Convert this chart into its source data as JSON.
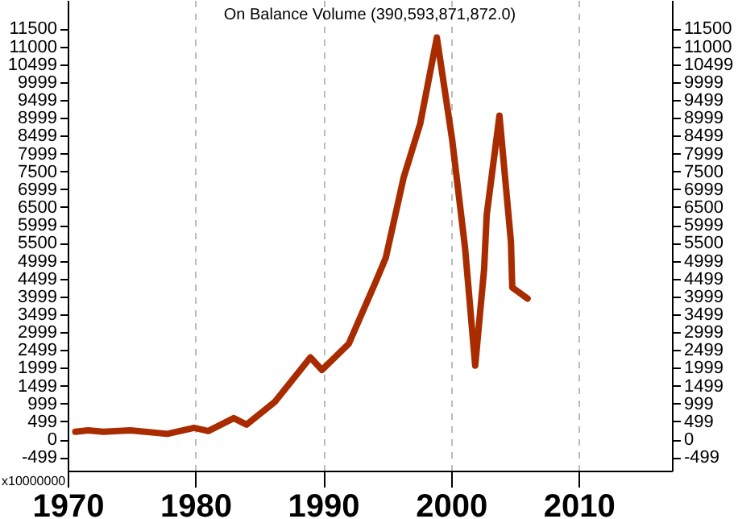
{
  "chart_data": {
    "type": "line",
    "title": "On Balance Volume (390,593,871,872.0)",
    "annotations": [
      "x10000000"
    ],
    "x": [
      1970.6,
      1971.6,
      1972.8,
      1974.9,
      1977.8,
      1979.9,
      1981,
      1983,
      1984,
      1986.2,
      1989,
      1989.9,
      1992,
      1994.1,
      1994.9,
      1996.3,
      1997.6,
      1998.9,
      2000.1,
      2001.1,
      2001.9,
      2002.6,
      2002.8,
      2003.8,
      2004.7,
      2004.8,
      2006
    ],
    "series": [
      {
        "color": "#a82c00",
        "values": [
          210,
          250,
          210,
          250,
          150,
          320,
          230,
          590,
          410,
          1040,
          2290,
          1940,
          2670,
          4400,
          5080,
          7330,
          8840,
          11250,
          8380,
          5380,
          2060,
          4770,
          6280,
          9060,
          5520,
          4250,
          3940
        ]
      }
    ],
    "xlim": [
      1970,
      2017.3
    ],
    "xticks": [
      1970,
      1980,
      1990,
      2000,
      2010
    ],
    "ylim": [
      -880,
      12300
    ],
    "yticks": [
      -499,
      0,
      499,
      999,
      1499,
      1999,
      2499,
      2999,
      3499,
      3999,
      4499,
      4999,
      5500,
      5999,
      6500,
      6999,
      7500,
      7999,
      8499,
      8999,
      9499,
      9999,
      10499,
      11000,
      11500
    ],
    "y2lim": [
      -880,
      12300
    ],
    "y2ticks": [
      -499,
      0,
      499,
      999,
      1499,
      1999,
      2499,
      2999,
      3499,
      3999,
      4499,
      4999,
      5500,
      5999,
      6500,
      6999,
      7500,
      7999,
      8499,
      8999,
      9499,
      9999,
      10499,
      11000,
      11500
    ],
    "grid": "x"
  }
}
